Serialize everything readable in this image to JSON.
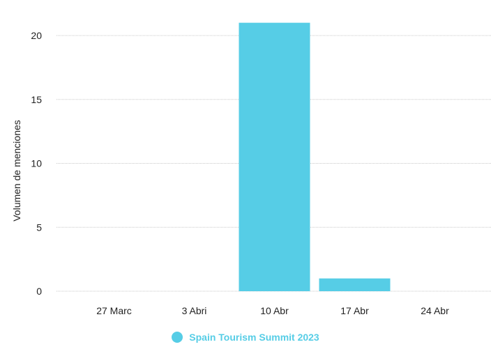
{
  "chart_data": {
    "type": "bar",
    "title": "",
    "xlabel": "",
    "ylabel": "Volumen de menciones",
    "categories": [
      "27 Marc",
      "3 Abri",
      "10 Abr",
      "17 Abr",
      "24 Abr"
    ],
    "series": [
      {
        "name": "Spain Tourism Summit 2023",
        "values": [
          0,
          0,
          21,
          1,
          0
        ],
        "color": "#56cde6"
      }
    ],
    "yticks": [
      "0",
      "5",
      "10",
      "15",
      "20"
    ],
    "ylim": [
      0,
      20
    ],
    "grid": true,
    "legend": "bottom"
  }
}
